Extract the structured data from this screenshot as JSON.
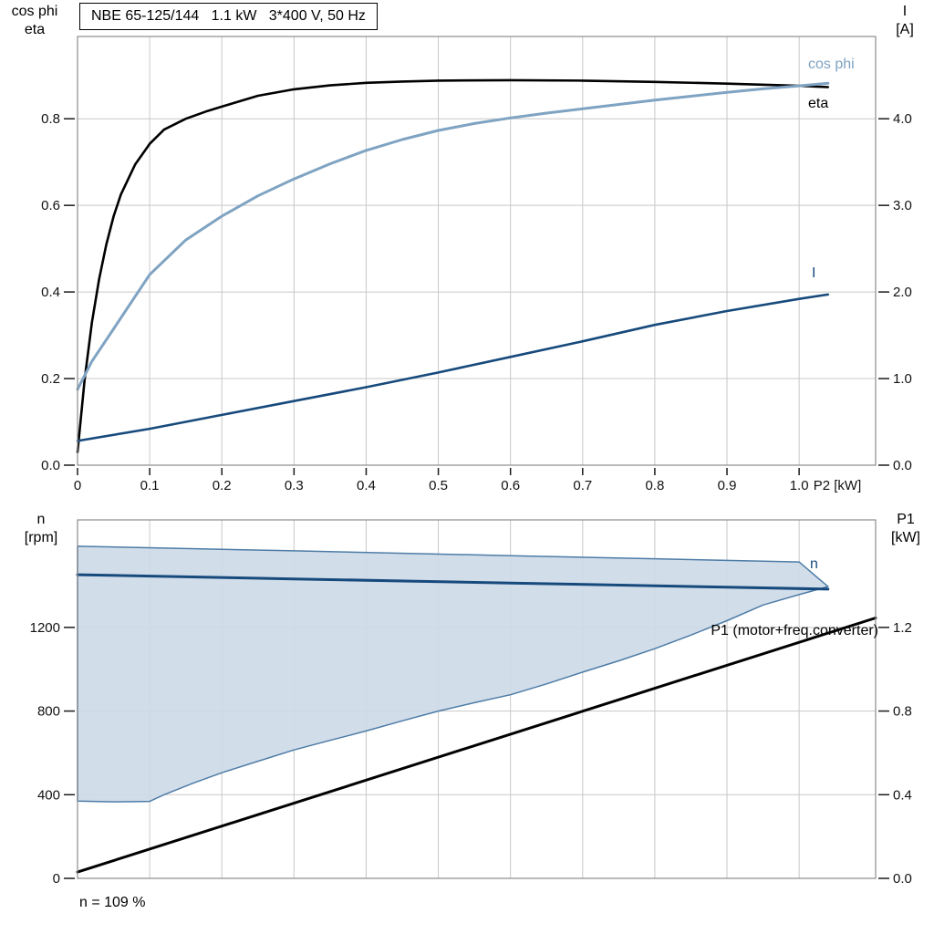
{
  "chart_data": [
    {
      "type": "line",
      "title": "NBE 65-125/144   1.1 kW   3*400 V, 50 Hz",
      "x_axis": {
        "label": "P2 [kW]",
        "range": [
          0,
          1.106
        ],
        "ticks": [
          0,
          0.1,
          0.2,
          0.3,
          0.4,
          0.5,
          0.6,
          0.7,
          0.8,
          0.9,
          1.0
        ],
        "tick_labels": [
          "0",
          "0.1",
          "0.2",
          "0.3",
          "0.4",
          "0.5",
          "0.6",
          "0.7",
          "0.8",
          "0.9",
          "1.0"
        ]
      },
      "left_axis": {
        "label": [
          "cos phi",
          "eta"
        ],
        "range": [
          0,
          0.99
        ],
        "ticks": [
          0,
          0.2,
          0.4,
          0.6,
          0.8
        ],
        "tick_labels": [
          "0.0",
          "0.2",
          "0.4",
          "0.6",
          "0.8"
        ]
      },
      "right_axis": {
        "label": [
          "I",
          "[A]"
        ],
        "range": [
          0,
          4.95
        ],
        "ticks": [
          0,
          1,
          2,
          3,
          4
        ],
        "tick_labels": [
          "0.0",
          "1.0",
          "2.0",
          "3.0",
          "4.0"
        ]
      },
      "grid": true,
      "legend_position": "right-inline",
      "series": [
        {
          "name": "eta",
          "label": "eta",
          "color": "#000000",
          "axis": "left",
          "width": 2.6,
          "points": [
            [
              0,
              0.03
            ],
            [
              0.01,
              0.2
            ],
            [
              0.02,
              0.33
            ],
            [
              0.03,
              0.43
            ],
            [
              0.04,
              0.51
            ],
            [
              0.05,
              0.575
            ],
            [
              0.06,
              0.625
            ],
            [
              0.08,
              0.695
            ],
            [
              0.1,
              0.742
            ],
            [
              0.12,
              0.775
            ],
            [
              0.15,
              0.8
            ],
            [
              0.18,
              0.818
            ],
            [
              0.2,
              0.828
            ],
            [
              0.25,
              0.853
            ],
            [
              0.3,
              0.868
            ],
            [
              0.35,
              0.877
            ],
            [
              0.4,
              0.883
            ],
            [
              0.45,
              0.886
            ],
            [
              0.5,
              0.888
            ],
            [
              0.6,
              0.889
            ],
            [
              0.7,
              0.888
            ],
            [
              0.8,
              0.885
            ],
            [
              0.9,
              0.881
            ],
            [
              1.0,
              0.876
            ],
            [
              1.04,
              0.873
            ]
          ]
        },
        {
          "name": "cos-phi",
          "label": "cos phi",
          "color": "#7fa3c2",
          "axis": "left",
          "width": 3,
          "points": [
            [
              0,
              0.175
            ],
            [
              0.02,
              0.24
            ],
            [
              0.05,
              0.315
            ],
            [
              0.08,
              0.39
            ],
            [
              0.1,
              0.44
            ],
            [
              0.15,
              0.52
            ],
            [
              0.2,
              0.575
            ],
            [
              0.25,
              0.622
            ],
            [
              0.3,
              0.661
            ],
            [
              0.35,
              0.696
            ],
            [
              0.4,
              0.727
            ],
            [
              0.45,
              0.752
            ],
            [
              0.5,
              0.773
            ],
            [
              0.55,
              0.789
            ],
            [
              0.6,
              0.802
            ],
            [
              0.65,
              0.813
            ],
            [
              0.7,
              0.823
            ],
            [
              0.75,
              0.833
            ],
            [
              0.8,
              0.843
            ],
            [
              0.85,
              0.852
            ],
            [
              0.9,
              0.861
            ],
            [
              0.95,
              0.869
            ],
            [
              1.0,
              0.876
            ],
            [
              1.04,
              0.882
            ]
          ]
        },
        {
          "name": "current",
          "label": "I",
          "color": "#174a7c",
          "axis": "right",
          "width": 2.6,
          "points": [
            [
              0,
              0.28
            ],
            [
              0.1,
              0.42
            ],
            [
              0.2,
              0.58
            ],
            [
              0.3,
              0.74
            ],
            [
              0.4,
              0.9
            ],
            [
              0.5,
              1.07
            ],
            [
              0.6,
              1.25
            ],
            [
              0.7,
              1.43
            ],
            [
              0.8,
              1.62
            ],
            [
              0.9,
              1.78
            ],
            [
              1.0,
              1.92
            ],
            [
              1.04,
              1.97
            ]
          ]
        }
      ]
    },
    {
      "type": "line",
      "x_axis": {
        "label": "",
        "range": [
          0,
          1.106
        ],
        "ticks": [
          0,
          0.1,
          0.2,
          0.3,
          0.4,
          0.5,
          0.6,
          0.7,
          0.8,
          0.9,
          1.0
        ],
        "tick_labels": []
      },
      "left_axis": {
        "label": [
          "n",
          "[rpm]"
        ],
        "range": [
          0,
          1714
        ],
        "ticks": [
          0,
          400,
          800,
          1200
        ],
        "tick_labels": [
          "0",
          "400",
          "800",
          "1200"
        ]
      },
      "right_axis": {
        "label": [
          "P1",
          "[kW]"
        ],
        "range": [
          0,
          1.714
        ],
        "ticks": [
          0,
          0.4,
          0.8,
          1.2
        ],
        "tick_labels": [
          "0.0",
          "0.4",
          "0.8",
          "1.2"
        ]
      },
      "grid": true,
      "annotation": "n = 109 %",
      "series": [
        {
          "name": "speed-envelope",
          "type": "area",
          "axis": "left",
          "fill": "#cdd9e8",
          "fill_opacity": 0.9,
          "stroke": "#4d7ca6",
          "width": 1.5,
          "points": [
            [
              0,
              1588
            ],
            [
              0.3,
              1566
            ],
            [
              0.6,
              1543
            ],
            [
              0.8,
              1528
            ],
            [
              0.95,
              1517
            ],
            [
              1.0,
              1513
            ],
            [
              1.04,
              1395
            ],
            [
              1.0,
              1357
            ],
            [
              0.95,
              1307
            ],
            [
              0.9,
              1232
            ],
            [
              0.85,
              1163
            ],
            [
              0.8,
              1098
            ],
            [
              0.75,
              1040
            ],
            [
              0.7,
              986
            ],
            [
              0.65,
              930
            ],
            [
              0.6,
              878
            ],
            [
              0.55,
              840
            ],
            [
              0.5,
              800
            ],
            [
              0.45,
              753
            ],
            [
              0.4,
              705
            ],
            [
              0.35,
              660
            ],
            [
              0.3,
              614
            ],
            [
              0.25,
              560
            ],
            [
              0.2,
              505
            ],
            [
              0.16,
              455
            ],
            [
              0.12,
              400
            ],
            [
              0.1,
              368
            ],
            [
              0.05,
              366
            ],
            [
              0,
              370
            ]
          ]
        },
        {
          "name": "speed",
          "label": "n",
          "color": "#174a7c",
          "axis": "left",
          "width": 3,
          "points": [
            [
              0,
              1452
            ],
            [
              0.3,
              1432
            ],
            [
              0.6,
              1412
            ],
            [
              0.9,
              1392
            ],
            [
              1.04,
              1383
            ]
          ]
        },
        {
          "name": "p1",
          "label": "P1 (motor+freq.converter)",
          "color": "#000000",
          "axis": "right",
          "width": 3,
          "points": [
            [
              0,
              0.03
            ],
            [
              1.106,
              1.245
            ]
          ]
        }
      ]
    }
  ]
}
